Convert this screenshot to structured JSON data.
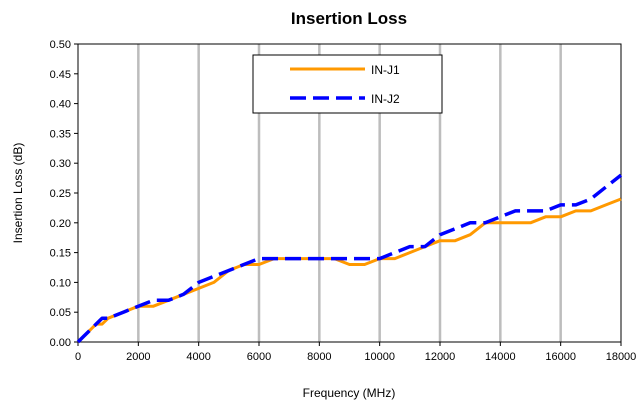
{
  "chart_data": {
    "type": "line",
    "title": "Insertion Loss",
    "xlabel": "Frequency (MHz)",
    "ylabel": "Insertion Loss  (dB)",
    "xlim": [
      0,
      18000
    ],
    "ylim": [
      0,
      0.5
    ],
    "x_ticks": [
      0,
      2000,
      4000,
      6000,
      8000,
      10000,
      12000,
      14000,
      16000,
      18000
    ],
    "y_ticks": [
      "0.00",
      "0.05",
      "0.10",
      "0.15",
      "0.20",
      "0.25",
      "0.30",
      "0.35",
      "0.40",
      "0.45",
      "0.50"
    ],
    "x_tick_labels": [
      "0",
      "2000",
      "4000",
      "6000",
      "8000",
      "10000",
      "12000",
      "14000",
      "16000",
      "18000"
    ],
    "grid": "vertical",
    "legend_position": "top-center",
    "series": [
      {
        "name": "IN-J1",
        "color": "#FF9900",
        "style": "solid",
        "x": [
          0,
          200,
          400,
          600,
          800,
          1000,
          1500,
          2000,
          2500,
          3000,
          3500,
          4000,
          4500,
          5000,
          5500,
          6000,
          6500,
          7000,
          7500,
          8000,
          8500,
          9000,
          9500,
          10000,
          10500,
          11000,
          11500,
          12000,
          12500,
          13000,
          13500,
          14000,
          14500,
          15000,
          15500,
          16000,
          16500,
          17000,
          17500,
          18000
        ],
        "values": [
          0.0,
          0.01,
          0.02,
          0.03,
          0.03,
          0.04,
          0.05,
          0.06,
          0.06,
          0.07,
          0.08,
          0.09,
          0.1,
          0.12,
          0.13,
          0.13,
          0.14,
          0.14,
          0.14,
          0.14,
          0.14,
          0.13,
          0.13,
          0.14,
          0.14,
          0.15,
          0.16,
          0.17,
          0.17,
          0.18,
          0.2,
          0.2,
          0.2,
          0.2,
          0.21,
          0.21,
          0.22,
          0.22,
          0.23,
          0.24
        ]
      },
      {
        "name": "IN-J2",
        "color": "#0000FF",
        "style": "dashed",
        "x": [
          0,
          200,
          400,
          600,
          800,
          1000,
          1500,
          2000,
          2500,
          3000,
          3500,
          4000,
          4500,
          5000,
          5500,
          6000,
          6500,
          7000,
          7500,
          8000,
          8500,
          9000,
          9500,
          10000,
          10500,
          11000,
          11500,
          12000,
          12500,
          13000,
          13500,
          14000,
          14500,
          15000,
          15500,
          16000,
          16500,
          17000,
          17500,
          18000
        ],
        "values": [
          0.0,
          0.01,
          0.02,
          0.03,
          0.04,
          0.04,
          0.05,
          0.06,
          0.07,
          0.07,
          0.08,
          0.1,
          0.11,
          0.12,
          0.13,
          0.14,
          0.14,
          0.14,
          0.14,
          0.14,
          0.14,
          0.14,
          0.14,
          0.14,
          0.15,
          0.16,
          0.16,
          0.18,
          0.19,
          0.2,
          0.2,
          0.21,
          0.22,
          0.22,
          0.22,
          0.23,
          0.23,
          0.24,
          0.26,
          0.28
        ]
      }
    ]
  }
}
